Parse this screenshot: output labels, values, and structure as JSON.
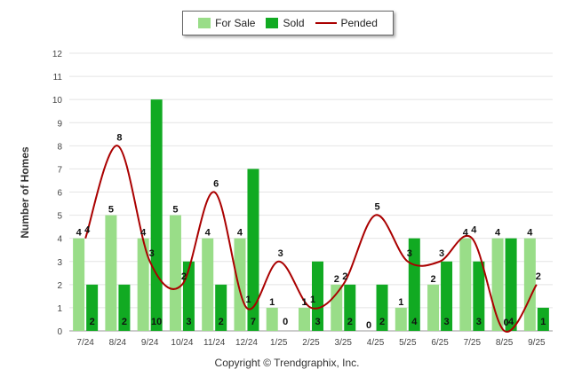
{
  "chart_data": {
    "type": "bar",
    "categories": [
      "7/24",
      "8/24",
      "9/24",
      "10/24",
      "11/24",
      "12/24",
      "1/25",
      "2/25",
      "3/25",
      "4/25",
      "5/25",
      "6/25",
      "7/25",
      "8/25",
      "9/25"
    ],
    "series": [
      {
        "name": "For Sale",
        "kind": "bar",
        "color": "#99dd88",
        "values": [
          4,
          5,
          4,
          5,
          4,
          4,
          1,
          1,
          2,
          0,
          1,
          2,
          4,
          4,
          4
        ]
      },
      {
        "name": "Sold",
        "kind": "bar",
        "color": "#11aa22",
        "values": [
          2,
          2,
          10,
          3,
          2,
          7,
          0,
          3,
          2,
          2,
          4,
          3,
          3,
          4,
          1
        ]
      },
      {
        "name": "Pended",
        "kind": "line",
        "color": "#aa0000",
        "values": [
          4,
          8,
          3,
          2,
          6,
          1,
          3,
          1,
          2,
          5,
          3,
          3,
          4,
          0,
          2
        ]
      }
    ],
    "title": "",
    "xlabel": "",
    "ylabel": "Number of Homes",
    "ylim": [
      0,
      12
    ],
    "yticks": [
      0,
      1,
      2,
      3,
      4,
      5,
      6,
      7,
      8,
      9,
      10,
      11,
      12
    ],
    "legend_position": "top-center",
    "grid": true
  },
  "legend": {
    "for_sale": "For Sale",
    "sold": "Sold",
    "pended": "Pended"
  },
  "axis": {
    "ylabel": "Number of Homes"
  },
  "footer": {
    "copyright": "Copyright © Trendgraphix, Inc."
  }
}
